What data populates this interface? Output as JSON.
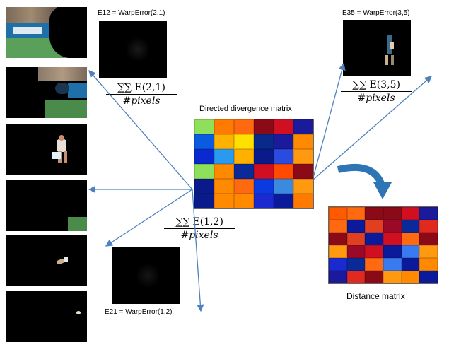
{
  "labels": {
    "e12": "E12 = WarpError(2,1)",
    "e35": "E35 = WarpError(3,5)",
    "e21": "E21 = WarpError(1,2)"
  },
  "formulas": {
    "f21": "∑∑ E(2,1)",
    "f35": "∑∑ E(3,5)",
    "f12": "∑∑ E(1,2)",
    "denominator": "#pixels"
  },
  "titles": {
    "directed": "Directed divergence matrix",
    "distance": "Distance matrix"
  },
  "colors": {
    "arrow": "#4f81bd",
    "curved_arrow": "#2e75b6"
  },
  "directed_matrix": [
    [
      "#8ee05a",
      "#ff7a00",
      "#ff6a10",
      "#8b0a18",
      "#d01020",
      "#1a1a9a"
    ],
    [
      "#0a5be0",
      "#ffb000",
      "#ffe000",
      "#0a2a8a",
      "#1a1a9a",
      "#ff8a00"
    ],
    [
      "#0a2ad0",
      "#2a9af0",
      "#ffb000",
      "#0a1a8a",
      "#2a4ae0",
      "#ff9a10"
    ],
    [
      "#8ee05a",
      "#ff8a00",
      "#0a2a9a",
      "#d01020",
      "#ff4a00",
      "#8b0a18"
    ],
    [
      "#0a1a8a",
      "#ff8a00",
      "#ff6a10",
      "#0a3ae0",
      "#3a8ae0",
      "#ff9a10"
    ],
    [
      "#0a1a8a",
      "#ff8a00",
      "#ff8a00",
      "#1a2ad0",
      "#0a1a9a",
      "#ff7a00"
    ]
  ],
  "distance_matrix": [
    [
      "#ff5a00",
      "#ff6a10",
      "#8b0a18",
      "#8b0a18",
      "#d01020",
      "#1a1a9a"
    ],
    [
      "#ff6a10",
      "#0a1a9a",
      "#e04020",
      "#9a0a28",
      "#0a2a9a",
      "#e02a20"
    ],
    [
      "#8b0a18",
      "#e04020",
      "#0a1a9a",
      "#d01020",
      "#ff6a10",
      "#8b0a18"
    ],
    [
      "#ff9a10",
      "#9a0a28",
      "#d01020",
      "#0a1a9a",
      "#3a7af0",
      "#ff9a10"
    ],
    [
      "#1a2ad0",
      "#0a2a9a",
      "#ff6a10",
      "#3a7af0",
      "#0a1a9a",
      "#ff8a00"
    ],
    [
      "#1a1a9a",
      "#e02a20",
      "#8b0a18",
      "#ff9a10",
      "#ff8a00",
      "#0a1a9a"
    ]
  ]
}
